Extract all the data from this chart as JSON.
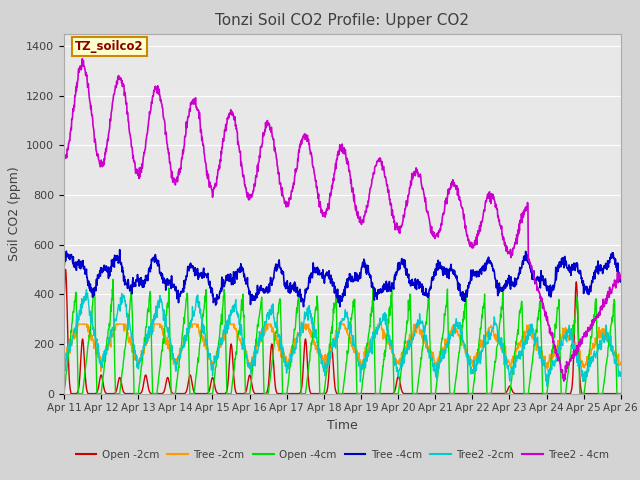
{
  "title": "Tonzi Soil CO2 Profile: Upper CO2",
  "xlabel": "Time",
  "ylabel": "Soil CO2 (ppm)",
  "ylim": [
    0,
    1450
  ],
  "yticks": [
    0,
    200,
    400,
    600,
    800,
    1000,
    1200,
    1400
  ],
  "fig_bg_color": "#d4d4d4",
  "plot_bg_color": "#e8e8e8",
  "legend_label": "TZ_soilco2",
  "series_colors": {
    "Open -2cm": "#cc0000",
    "Tree -2cm": "#ff9900",
    "Open -4cm": "#00dd00",
    "Tree -4cm": "#0000cc",
    "Tree2 -2cm": "#00cccc",
    "Tree2 - 4cm": "#cc00cc"
  },
  "x_tick_labels": [
    "Apr 11",
    "Apr 12",
    "Apr 13",
    "Apr 14",
    "Apr 15",
    "Apr 16",
    "Apr 17",
    "Apr 18",
    "Apr 19",
    "Apr 20",
    "Apr 21",
    "Apr 22",
    "Apr 23",
    "Apr 24",
    "Apr 25",
    "Apr 26"
  ]
}
